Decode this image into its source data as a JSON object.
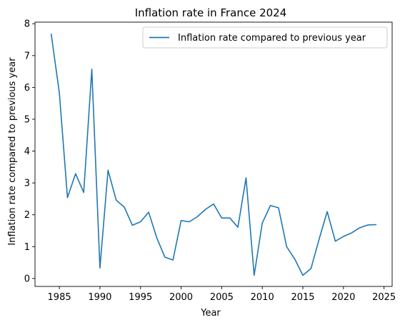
{
  "chart_data": {
    "type": "line",
    "title": "Inflation rate in France 2024",
    "xlabel": "Year",
    "ylabel": "Inflation rate compared to previous year",
    "xlim": [
      1982,
      2026
    ],
    "ylim": [
      -0.25,
      8.05
    ],
    "xticks": [
      1985,
      1990,
      1995,
      2000,
      2005,
      2010,
      2015,
      2020,
      2025
    ],
    "yticks": [
      0,
      1,
      2,
      3,
      4,
      5,
      6,
      7,
      8
    ],
    "grid": false,
    "legend_position": "top-right",
    "series": [
      {
        "name": "Inflation rate compared to previous year",
        "color": "#1f77b4",
        "x": [
          1984,
          1985,
          1986,
          1987,
          1988,
          1989,
          1990,
          1991,
          1992,
          1993,
          1994,
          1995,
          1996,
          1997,
          1998,
          1999,
          2000,
          2001,
          2002,
          2003,
          2004,
          2005,
          2006,
          2007,
          2008,
          2009,
          2010,
          2011,
          2012,
          2013,
          2014,
          2015,
          2016,
          2017,
          2018,
          2019,
          2020,
          2021,
          2022,
          2023,
          2024
        ],
        "y": [
          7.67,
          5.83,
          2.54,
          3.29,
          2.7,
          6.57,
          0.33,
          3.4,
          2.46,
          2.24,
          1.67,
          1.78,
          2.08,
          1.28,
          0.67,
          0.58,
          1.82,
          1.78,
          1.94,
          2.17,
          2.34,
          1.9,
          1.9,
          1.61,
          3.16,
          0.1,
          1.74,
          2.29,
          2.22,
          1.0,
          0.61,
          0.1,
          0.31,
          1.23,
          2.1,
          1.17,
          1.32,
          1.43,
          1.59,
          1.68,
          1.69
        ]
      }
    ]
  }
}
